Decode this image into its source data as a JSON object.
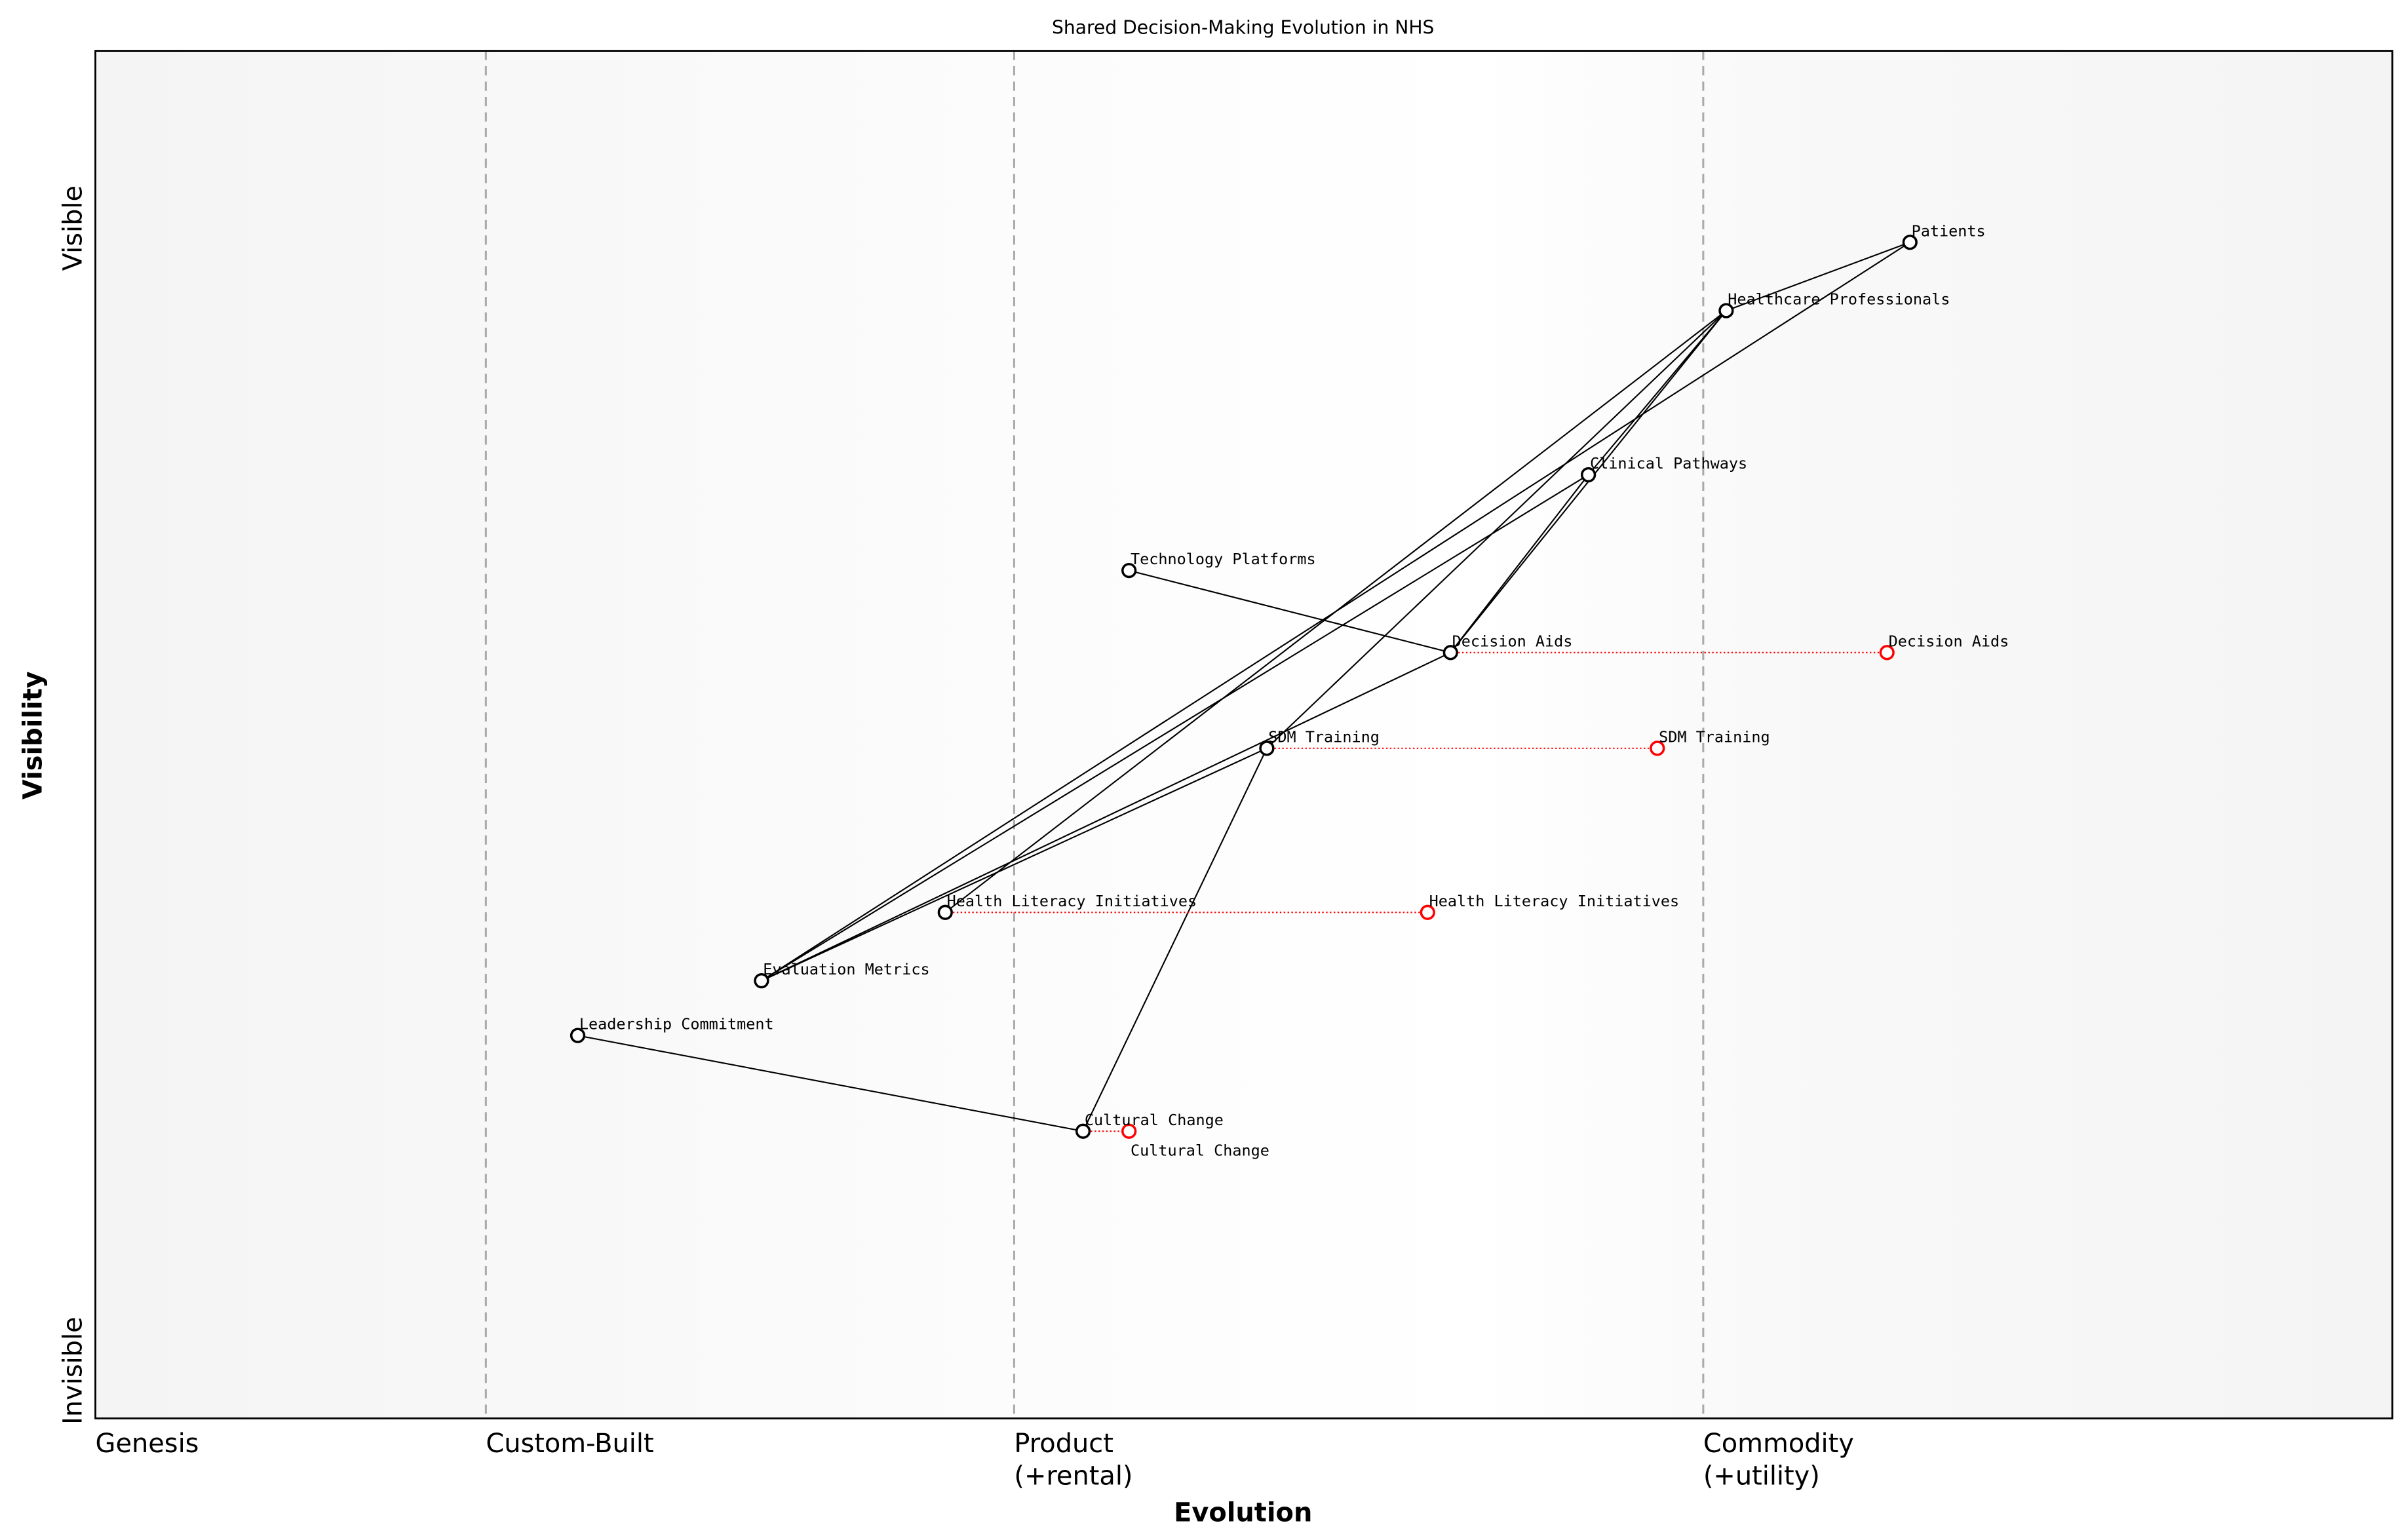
{
  "chart_data": {
    "type": "wardley-map",
    "title": "Shared Decision-Making Evolution in NHS",
    "xlabel": "Evolution",
    "ylabel": "Visibility",
    "xlim": [
      0,
      1
    ],
    "ylim": [
      0,
      1
    ],
    "y_ticks": [
      "Invisible",
      "Visible"
    ],
    "stages": [
      {
        "label": "Genesis",
        "x": 0.0
      },
      {
        "label": "Custom-Built",
        "x": 0.17
      },
      {
        "label": "Product\n(+rental)",
        "label_lines": [
          "Product",
          "(+rental)"
        ],
        "x": 0.4
      },
      {
        "label": "Commodity\n(+utility)",
        "label_lines": [
          "Commodity",
          "(+utility)"
        ],
        "x": 0.7
      }
    ],
    "components": [
      {
        "name": "Patients",
        "evolution": 0.79,
        "visibility": 0.86
      },
      {
        "name": "Healthcare Professionals",
        "evolution": 0.71,
        "visibility": 0.81
      },
      {
        "name": "Clinical Pathways",
        "evolution": 0.65,
        "visibility": 0.69
      },
      {
        "name": "Technology Platforms",
        "evolution": 0.45,
        "visibility": 0.62
      },
      {
        "name": "Decision Aids",
        "evolution": 0.59,
        "visibility": 0.56,
        "evolve_to": 0.78
      },
      {
        "name": "SDM Training",
        "evolution": 0.51,
        "visibility": 0.49,
        "evolve_to": 0.68
      },
      {
        "name": "Health Literacy Initiatives",
        "evolution": 0.37,
        "visibility": 0.37,
        "evolve_to": 0.58
      },
      {
        "name": "Evaluation Metrics",
        "evolution": 0.29,
        "visibility": 0.32
      },
      {
        "name": "Leadership Commitment",
        "evolution": 0.21,
        "visibility": 0.28
      },
      {
        "name": "Cultural Change",
        "evolution": 0.43,
        "visibility": 0.21,
        "evolve_to": 0.45
      }
    ],
    "links": [
      [
        "Patients",
        "Healthcare Professionals"
      ],
      [
        "Patients",
        "Evaluation Metrics"
      ],
      [
        "Healthcare Professionals",
        "Clinical Pathways"
      ],
      [
        "Healthcare Professionals",
        "Decision Aids"
      ],
      [
        "Healthcare Professionals",
        "Health Literacy Initiatives"
      ],
      [
        "Healthcare Professionals",
        "SDM Training"
      ],
      [
        "Clinical Pathways",
        "Decision Aids"
      ],
      [
        "Clinical Pathways",
        "Evaluation Metrics"
      ],
      [
        "Technology Platforms",
        "Decision Aids"
      ],
      [
        "Decision Aids",
        "Evaluation Metrics"
      ],
      [
        "SDM Training",
        "Evaluation Metrics"
      ],
      [
        "SDM Training",
        "Cultural Change"
      ],
      [
        "Leadership Commitment",
        "Cultural Change"
      ]
    ],
    "colors": {
      "component": "#000000",
      "evolved": "#ff0000",
      "link": "#000000",
      "stage_line": "#aaaaaa"
    },
    "grid": false
  }
}
